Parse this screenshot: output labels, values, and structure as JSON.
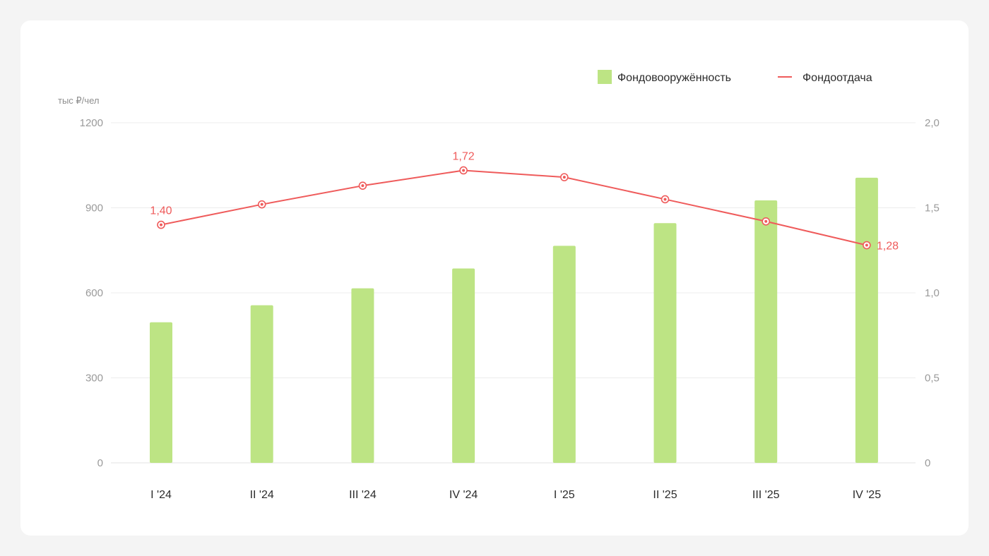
{
  "chart_data": {
    "type": "bar",
    "categories": [
      "I '24",
      "II '24",
      "III '24",
      "IV '24",
      "I '25",
      "II '25",
      "III '25",
      "IV '25"
    ],
    "series": [
      {
        "name": "Фондовооружённость",
        "type": "bar",
        "axis": "left",
        "color": "#bde484",
        "values": [
          496,
          556,
          616,
          686,
          766,
          846,
          926,
          1006
        ]
      },
      {
        "name": "Фондоотдача",
        "type": "line",
        "axis": "right",
        "color": "#ef5b5b",
        "values": [
          1.4,
          1.52,
          1.63,
          1.72,
          1.68,
          1.55,
          1.42,
          1.28
        ],
        "data_labels": {
          "0": "1,40",
          "3": "1,72",
          "7": "1,28"
        }
      }
    ],
    "y_left": {
      "unit": "тыс ₽/чел",
      "range": [
        0,
        1200
      ],
      "ticks": [
        "0",
        "300",
        "600",
        "900",
        "1200"
      ]
    },
    "y_right": {
      "range": [
        0,
        2.0
      ],
      "ticks": [
        "0",
        "0,5",
        "1,0",
        "1,5",
        "2,0"
      ]
    },
    "grid": true,
    "legend": "top-right"
  }
}
